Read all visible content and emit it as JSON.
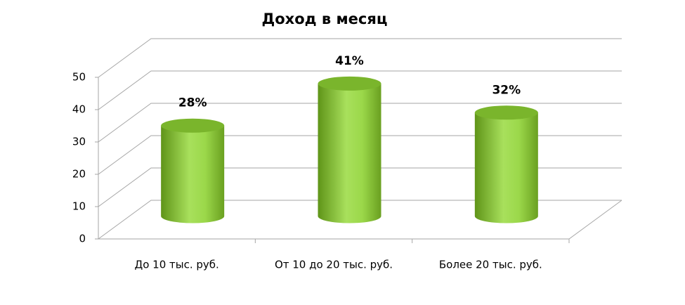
{
  "chart_data": {
    "type": "bar3d",
    "title": "Доход в месяц",
    "categories": [
      "До 10 тыс. руб.",
      "От 10 до 20 тыс. руб.",
      "Более 20 тыс. руб."
    ],
    "values": [
      28,
      41,
      32
    ],
    "value_labels": [
      "28%",
      "41%",
      "32%"
    ],
    "color": "#8ccc3c",
    "ylim": [
      0,
      50
    ],
    "yticks": [
      0,
      10,
      20,
      30,
      40,
      50
    ],
    "grid": true
  }
}
